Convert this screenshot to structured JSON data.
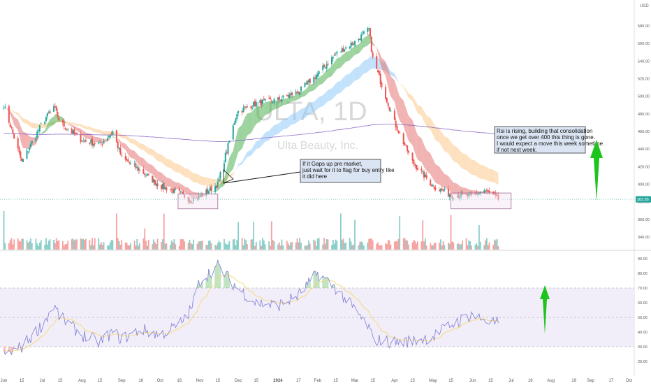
{
  "header": {
    "currency": "USD"
  },
  "watermark": {
    "ticker": "ULTA, 1D",
    "company": "Ulta Beauty, Inc."
  },
  "colors": {
    "up": "#26a69a",
    "down": "#ef5350",
    "ema_up": "#4caf50",
    "ema_down": "#e57373",
    "ribbon_orange": "#fbc98a",
    "ribbon_blue": "#90caf9",
    "ma_line": "#7e57c2",
    "rsi_line": "#7e7ed6",
    "rsi_signal": "#f5d76e",
    "rsi_band": "#ede7f6",
    "box_fill": "#f3e5f5",
    "box_stroke": "#9e6b8f",
    "arrow": "#1ec41e",
    "note_fill": "#dbe4f2"
  },
  "price_axis": {
    "ticks": [
      "580.00",
      "560.00",
      "540.00",
      "520.00",
      "500.00",
      "480.00",
      "460.00",
      "440.00",
      "420.00",
      "400.00",
      "380.00",
      "360.00",
      "340.00"
    ],
    "last_price": "382.85"
  },
  "rsi_axis": {
    "ticks": [
      "90.00",
      "80.00",
      "70.00",
      "60.00",
      "50.00",
      "40.00",
      "30.00",
      "20.00"
    ]
  },
  "time_axis": {
    "labels": [
      "Jun",
      "15",
      "Jul",
      "15",
      "Aug",
      "15",
      "Sep",
      "16",
      "Oct",
      "16",
      "Nov",
      "15",
      "Dec",
      "15",
      "2024",
      "17",
      "Feb",
      "15",
      "Mar",
      "15",
      "Apr",
      "15",
      "May",
      "15",
      "Jun",
      "15",
      "Jul",
      "16",
      "Aug",
      "19",
      "Sep",
      "17",
      "Oct",
      "1"
    ]
  },
  "annotations": {
    "note_left": [
      "If it Gaps up pre market,",
      "just wait for it to flag for buy entry like",
      "it did here"
    ],
    "note_right": [
      "Rsi is rising, building that consolidation",
      " once we get over 400 this thing is gone.",
      "I would expect a move this week sometime",
      "if not next week."
    ]
  },
  "chart_data": {
    "type": "line",
    "title": "ULTA, 1D",
    "subtitle": "Ulta Beauty, Inc.",
    "xlabel": "",
    "ylabel": "USD",
    "ylim": [
      330,
      592
    ],
    "x": [
      "2023-06-01",
      "2023-06-15",
      "2023-07-01",
      "2023-07-10",
      "2023-07-15",
      "2023-08-01",
      "2023-08-15",
      "2023-08-25",
      "2023-09-01",
      "2023-09-16",
      "2023-10-01",
      "2023-10-16",
      "2023-10-25",
      "2023-11-01",
      "2023-11-15",
      "2023-11-30",
      "2023-12-15",
      "2024-01-01",
      "2024-01-17",
      "2024-02-01",
      "2024-02-15",
      "2024-03-01",
      "2024-03-12",
      "2024-03-15",
      "2024-04-01",
      "2024-04-15",
      "2024-05-01",
      "2024-05-15",
      "2024-05-31",
      "2024-06-10",
      "2024-06-21"
    ],
    "series": [
      {
        "values": [
          490,
          425,
          470,
          488,
          470,
          450,
          445,
          460,
          430,
          415,
          398,
          390,
          382,
          386,
          400,
          482,
          492,
          496,
          505,
          525,
          548,
          562,
          576,
          543,
          470,
          425,
          398,
          388,
          386,
          393,
          382.85
        ]
      }
    ],
    "overlays": {
      "horizontal_line": 382.85
    },
    "consolidation_boxes": [
      {
        "x_range": [
          "2023-10-15",
          "2023-11-15"
        ],
        "y_range": [
          372,
          389
        ]
      },
      {
        "x_range": [
          "2024-05-15",
          "2024-07-01"
        ],
        "y_range": [
          372,
          390
        ]
      }
    ],
    "rsi": {
      "ylim": [
        15,
        93
      ],
      "band": [
        30,
        70
      ],
      "values": [
        24,
        30,
        45,
        58,
        50,
        38,
        33,
        40,
        35,
        42,
        38,
        45,
        55,
        75,
        85,
        70,
        60,
        58,
        65,
        80,
        70,
        55,
        43,
        35,
        33,
        34,
        37,
        45,
        52,
        48,
        46
      ]
    }
  }
}
